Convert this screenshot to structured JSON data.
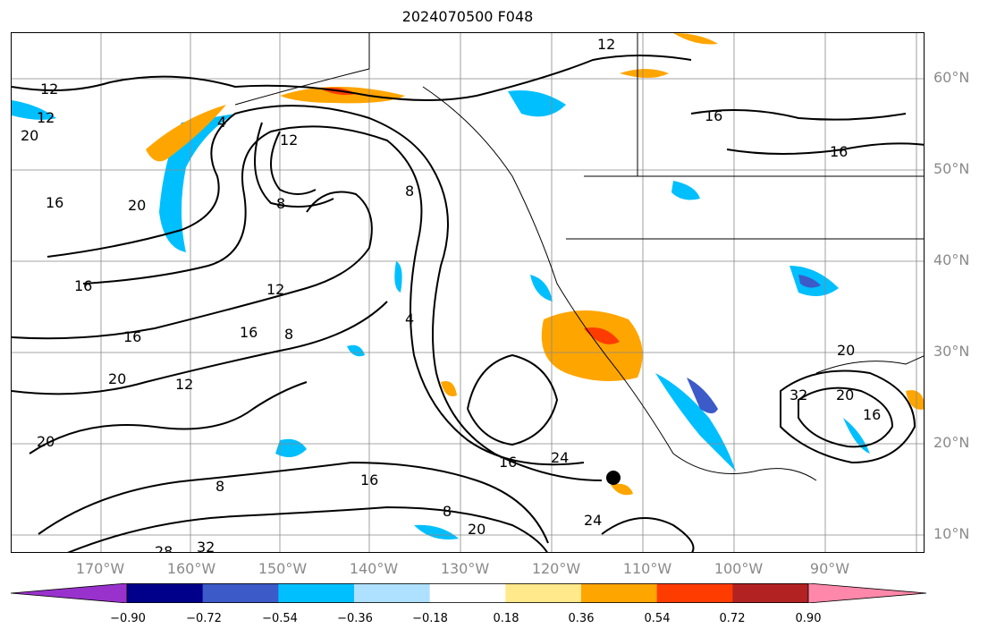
{
  "title": "2024070500 F048",
  "lat_labels": [
    "60°N",
    "50°N",
    "40°N",
    "30°N",
    "20°N",
    "10°N"
  ],
  "lon_labels": [
    "170°W",
    "160°W",
    "150°W",
    "140°W",
    "130°W",
    "120°W",
    "110°W",
    "100°W",
    "90°W"
  ],
  "colorbar": {
    "ticks": [
      "−0.90",
      "−0.72",
      "−0.54",
      "−0.36",
      "−0.18",
      "0.18",
      "0.36",
      "0.54",
      "0.72",
      "0.90"
    ],
    "colors": [
      "#9932cc",
      "#00008b",
      "#3c5ac8",
      "#00bfff",
      "#aee1ff",
      "#ffffff",
      "#ffe98a",
      "#ffa500",
      "#ff3c00",
      "#b22222",
      "#ff88aa"
    ]
  },
  "contour_labels": [
    "12",
    "8",
    "16",
    "20",
    "4",
    "24",
    "28",
    "32"
  ],
  "colors": {
    "frame": "#000000",
    "gridlines": "#888888",
    "contours": "#000000",
    "axis_labels": "#8a8a8a"
  }
}
